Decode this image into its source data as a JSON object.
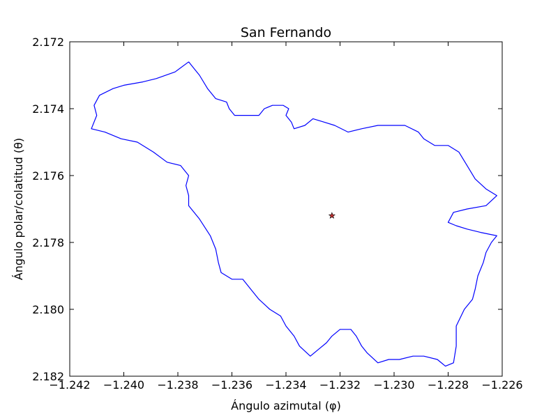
{
  "chart_data": {
    "type": "line",
    "title": "San Fernando",
    "xlabel": "Ángulo azimutal (φ)",
    "ylabel": "Ángulo polar/colatitud (θ)",
    "xlim": [
      -1.242,
      -1.226
    ],
    "ylim": [
      2.172,
      2.182
    ],
    "y_inverted": true,
    "grid": false,
    "x_ticks": [
      -1.242,
      -1.24,
      -1.238,
      -1.236,
      -1.234,
      -1.232,
      -1.23,
      -1.228,
      -1.226
    ],
    "x_tick_labels": [
      "−1.242",
      "−1.240",
      "−1.238",
      "−1.236",
      "−1.234",
      "−1.232",
      "−1.230",
      "−1.228",
      "−1.226"
    ],
    "y_ticks": [
      2.172,
      2.174,
      2.176,
      2.178,
      2.18,
      2.182
    ],
    "y_tick_labels": [
      "2.172",
      "2.174",
      "2.176",
      "2.178",
      "2.180",
      "2.182"
    ],
    "series": [
      {
        "color": "#0000ff",
        "points": [
          [
            -1.2376,
            2.1726
          ],
          [
            -1.2381,
            2.1729
          ],
          [
            -1.2388,
            2.1731
          ],
          [
            -1.2393,
            2.1732
          ],
          [
            -1.24,
            2.1733
          ],
          [
            -1.2404,
            2.1734
          ],
          [
            -1.2409,
            2.1736
          ],
          [
            -1.2411,
            2.1739
          ],
          [
            -1.241,
            2.1742
          ],
          [
            -1.2412,
            2.1746
          ],
          [
            -1.2407,
            2.1747
          ],
          [
            -1.2401,
            2.1749
          ],
          [
            -1.2395,
            2.175
          ],
          [
            -1.2389,
            2.1753
          ],
          [
            -1.2384,
            2.1756
          ],
          [
            -1.2379,
            2.1757
          ],
          [
            -1.2376,
            2.176
          ],
          [
            -1.2377,
            2.1763
          ],
          [
            -1.2376,
            2.1766
          ],
          [
            -1.2376,
            2.1769
          ],
          [
            -1.2372,
            2.1773
          ],
          [
            -1.2368,
            2.1778
          ],
          [
            -1.2366,
            2.1782
          ],
          [
            -1.2365,
            2.1786
          ],
          [
            -1.2364,
            2.1789
          ],
          [
            -1.236,
            2.1791
          ],
          [
            -1.2356,
            2.1791
          ],
          [
            -1.2353,
            2.1794
          ],
          [
            -1.235,
            2.1797
          ],
          [
            -1.2346,
            2.18
          ],
          [
            -1.2342,
            2.1802
          ],
          [
            -1.234,
            2.1805
          ],
          [
            -1.2337,
            2.1808
          ],
          [
            -1.2335,
            2.1811
          ],
          [
            -1.2331,
            2.1814
          ],
          [
            -1.2328,
            2.1812
          ],
          [
            -1.2325,
            2.181
          ],
          [
            -1.2323,
            2.1808
          ],
          [
            -1.232,
            2.1806
          ],
          [
            -1.2316,
            2.1806
          ],
          [
            -1.2314,
            2.1808
          ],
          [
            -1.2312,
            2.1811
          ],
          [
            -1.231,
            2.1813
          ],
          [
            -1.2306,
            2.1816
          ],
          [
            -1.2302,
            2.1815
          ],
          [
            -1.2298,
            2.1815
          ],
          [
            -1.2293,
            2.1814
          ],
          [
            -1.2289,
            2.1814
          ],
          [
            -1.2284,
            2.1815
          ],
          [
            -1.2281,
            2.1817
          ],
          [
            -1.2278,
            2.1816
          ],
          [
            -1.2277,
            2.1811
          ],
          [
            -1.2277,
            2.1805
          ],
          [
            -1.2274,
            2.18
          ],
          [
            -1.2271,
            2.1797
          ],
          [
            -1.227,
            2.1794
          ],
          [
            -1.2269,
            2.179
          ],
          [
            -1.2267,
            2.1786
          ],
          [
            -1.2266,
            2.1783
          ],
          [
            -1.2264,
            2.178
          ],
          [
            -1.2262,
            2.1778
          ],
          [
            -1.2268,
            2.1777
          ],
          [
            -1.2273,
            2.1776
          ],
          [
            -1.2277,
            2.1775
          ],
          [
            -1.228,
            2.1774
          ],
          [
            -1.2278,
            2.1771
          ],
          [
            -1.2273,
            2.177
          ],
          [
            -1.2266,
            2.1769
          ],
          [
            -1.2262,
            2.1766
          ],
          [
            -1.2266,
            2.1764
          ],
          [
            -1.227,
            2.1761
          ],
          [
            -1.2273,
            2.1757
          ],
          [
            -1.2276,
            2.1753
          ],
          [
            -1.228,
            2.1751
          ],
          [
            -1.2285,
            2.1751
          ],
          [
            -1.2289,
            2.1749
          ],
          [
            -1.2291,
            2.1747
          ],
          [
            -1.2296,
            2.1745
          ],
          [
            -1.2302,
            2.1745
          ],
          [
            -1.2306,
            2.1745
          ],
          [
            -1.2312,
            2.1746
          ],
          [
            -1.2317,
            2.1747
          ],
          [
            -1.2322,
            2.1745
          ],
          [
            -1.2326,
            2.1744
          ],
          [
            -1.233,
            2.1743
          ],
          [
            -1.2333,
            2.1745
          ],
          [
            -1.2337,
            2.1746
          ],
          [
            -1.2338,
            2.1744
          ],
          [
            -1.234,
            2.1742
          ],
          [
            -1.2339,
            2.174
          ],
          [
            -1.2341,
            2.1739
          ],
          [
            -1.2345,
            2.1739
          ],
          [
            -1.2348,
            2.174
          ],
          [
            -1.235,
            2.1742
          ],
          [
            -1.2355,
            2.1742
          ],
          [
            -1.2359,
            2.1742
          ],
          [
            -1.2361,
            2.174
          ],
          [
            -1.2362,
            2.1738
          ],
          [
            -1.2366,
            2.1737
          ],
          [
            -1.2369,
            2.1734
          ],
          [
            -1.2372,
            2.173
          ],
          [
            -1.2374,
            2.1728
          ],
          [
            -1.2376,
            2.1726
          ]
        ]
      }
    ],
    "marker": {
      "x": -1.2323,
      "y": 2.1772,
      "shape": "star",
      "color": "#c03030"
    }
  }
}
